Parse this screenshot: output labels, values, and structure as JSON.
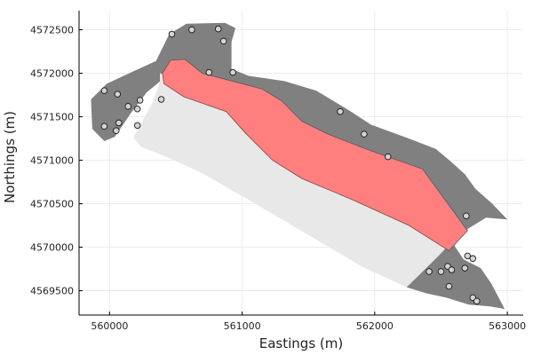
{
  "chart_data": {
    "type": "map",
    "xlabel": "Eastings (m)",
    "ylabel": "Northings (m)",
    "xlim": [
      559770,
      563120
    ],
    "ylim": [
      4569220,
      4572720
    ],
    "grid": true,
    "x_ticks": [
      560000,
      561000,
      562000,
      563000
    ],
    "x_tick_labels": [
      "560000",
      "561000",
      "562000",
      "563000"
    ],
    "y_ticks": [
      4569500,
      4570000,
      4570500,
      4571000,
      4571500,
      4572000,
      4572500
    ],
    "y_tick_labels": [
      "4569500",
      "4570000",
      "4570500",
      "4571000",
      "4571500",
      "4572000",
      "4572500"
    ],
    "colors": {
      "outer_region": "#808080",
      "inner_region": "#e8e8e8",
      "highlight_region": "#ff7f7f",
      "points_fill": "#d3d3d3"
    },
    "regions": [
      {
        "kind": "outer_region",
        "points": [
          [
            560450,
            4572450
          ],
          [
            560580,
            4572570
          ],
          [
            560870,
            4572580
          ],
          [
            560950,
            4572520
          ],
          [
            560920,
            4572360
          ],
          [
            560920,
            4572050
          ],
          [
            561050,
            4571970
          ],
          [
            561320,
            4571910
          ],
          [
            561560,
            4571800
          ],
          [
            561810,
            4571570
          ],
          [
            561970,
            4571410
          ],
          [
            562240,
            4571260
          ],
          [
            562460,
            4571130
          ],
          [
            562570,
            4570990
          ],
          [
            562680,
            4570840
          ],
          [
            562760,
            4570670
          ],
          [
            562880,
            4570510
          ],
          [
            563000,
            4570320
          ],
          [
            562840,
            4570340
          ],
          [
            562690,
            4570200
          ],
          [
            562600,
            4570020
          ],
          [
            562670,
            4569860
          ],
          [
            562800,
            4569760
          ],
          [
            562880,
            4569580
          ],
          [
            562980,
            4569290
          ],
          [
            562870,
            4569320
          ],
          [
            562710,
            4569340
          ],
          [
            562540,
            4569420
          ],
          [
            562390,
            4569470
          ],
          [
            562240,
            4569540
          ],
          [
            562480,
            4569900
          ],
          [
            562640,
            4570160
          ],
          [
            562460,
            4570390
          ],
          [
            562140,
            4570620
          ],
          [
            561780,
            4570840
          ],
          [
            561450,
            4571070
          ],
          [
            561230,
            4571250
          ],
          [
            561020,
            4571500
          ],
          [
            560880,
            4571700
          ],
          [
            560660,
            4571880
          ],
          [
            560400,
            4571930
          ],
          [
            560280,
            4571780
          ],
          [
            560160,
            4571540
          ],
          [
            560040,
            4571270
          ],
          [
            559960,
            4571220
          ],
          [
            559870,
            4571360
          ],
          [
            559860,
            4571700
          ],
          [
            559980,
            4571880
          ],
          [
            560190,
            4572030
          ],
          [
            560350,
            4572140
          ]
        ]
      },
      {
        "kind": "inner_region",
        "points": [
          [
            560380,
            4572000
          ],
          [
            560660,
            4571880
          ],
          [
            560880,
            4571700
          ],
          [
            561020,
            4571500
          ],
          [
            561230,
            4571250
          ],
          [
            561450,
            4571070
          ],
          [
            561780,
            4570840
          ],
          [
            562140,
            4570620
          ],
          [
            562460,
            4570390
          ],
          [
            562640,
            4570160
          ],
          [
            562480,
            4569900
          ],
          [
            562240,
            4569540
          ],
          [
            561900,
            4569780
          ],
          [
            561500,
            4570140
          ],
          [
            561100,
            4570500
          ],
          [
            560700,
            4570850
          ],
          [
            560400,
            4571060
          ],
          [
            560240,
            4571150
          ],
          [
            560180,
            4571260
          ],
          [
            560330,
            4571680
          ],
          [
            560380,
            4571900
          ]
        ]
      },
      {
        "kind": "highlight_region",
        "points": [
          [
            560460,
            4572150
          ],
          [
            560570,
            4572160
          ],
          [
            560700,
            4572000
          ],
          [
            561150,
            4571820
          ],
          [
            561300,
            4571680
          ],
          [
            561450,
            4571450
          ],
          [
            561650,
            4571300
          ],
          [
            561950,
            4571120
          ],
          [
            562360,
            4570900
          ],
          [
            562700,
            4570190
          ],
          [
            562560,
            4569960
          ],
          [
            562260,
            4570250
          ],
          [
            561840,
            4570540
          ],
          [
            561450,
            4570790
          ],
          [
            561230,
            4571000
          ],
          [
            561020,
            4571320
          ],
          [
            560880,
            4571560
          ],
          [
            560560,
            4571730
          ],
          [
            560410,
            4571880
          ],
          [
            560400,
            4572000
          ]
        ]
      }
    ],
    "points": [
      {
        "x": 559960,
        "y": 4571800
      },
      {
        "x": 560060,
        "y": 4571760
      },
      {
        "x": 560140,
        "y": 4571620
      },
      {
        "x": 560230,
        "y": 4571690
      },
      {
        "x": 560210,
        "y": 4571590
      },
      {
        "x": 560390,
        "y": 4571700
      },
      {
        "x": 560070,
        "y": 4571430
      },
      {
        "x": 559960,
        "y": 4571390
      },
      {
        "x": 560050,
        "y": 4571340
      },
      {
        "x": 560210,
        "y": 4571400
      },
      {
        "x": 560470,
        "y": 4572450
      },
      {
        "x": 560620,
        "y": 4572500
      },
      {
        "x": 560820,
        "y": 4572510
      },
      {
        "x": 560860,
        "y": 4572370
      },
      {
        "x": 560750,
        "y": 4572010
      },
      {
        "x": 560930,
        "y": 4572010
      },
      {
        "x": 561740,
        "y": 4571560
      },
      {
        "x": 561920,
        "y": 4571300
      },
      {
        "x": 562100,
        "y": 4571040
      },
      {
        "x": 562690,
        "y": 4570360
      },
      {
        "x": 562700,
        "y": 4569900
      },
      {
        "x": 562740,
        "y": 4569870
      },
      {
        "x": 562410,
        "y": 4569720
      },
      {
        "x": 562500,
        "y": 4569720
      },
      {
        "x": 562550,
        "y": 4569780
      },
      {
        "x": 562580,
        "y": 4569740
      },
      {
        "x": 562680,
        "y": 4569760
      },
      {
        "x": 562560,
        "y": 4569550
      },
      {
        "x": 562740,
        "y": 4569420
      },
      {
        "x": 562770,
        "y": 4569380
      }
    ]
  }
}
